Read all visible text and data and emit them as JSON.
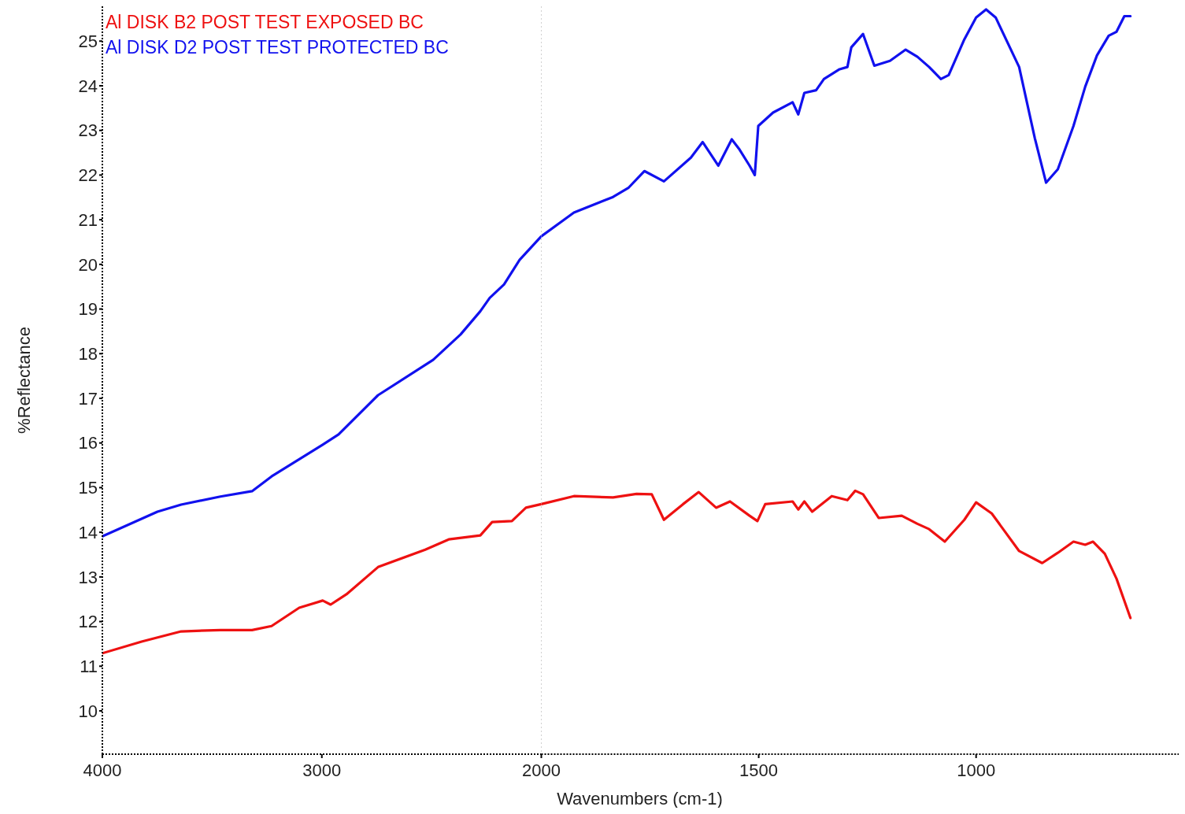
{
  "chart_data": [
    {
      "type": "line",
      "xlabel": "Wavenumbers (cm-1)",
      "ylabel": "%Reflectance",
      "xlim": [
        4000,
        2000
      ],
      "xticks": [
        4000,
        3000,
        2000
      ],
      "ylim": [
        9.03,
        25.78
      ],
      "yticks": [
        10,
        11,
        12,
        13,
        14,
        15,
        16,
        17,
        18,
        19,
        20,
        21,
        22,
        23,
        24,
        25
      ],
      "legend": "top left",
      "grid": false,
      "marker": "none",
      "line_style": "solid",
      "series": [
        {
          "name": "Al DISK B2 POST TEST EXPOSED BC",
          "color": "#ee1111",
          "x": [
            4000,
            3821,
            3641,
            3462,
            3318,
            3229,
            3103,
            2996,
            2960,
            2888,
            2744,
            2529,
            2422,
            2278,
            2224,
            2134,
            2070,
            2000
          ],
          "values": [
            11.29,
            11.55,
            11.78,
            11.81,
            11.81,
            11.9,
            12.31,
            12.47,
            12.38,
            12.61,
            13.22,
            13.61,
            13.84,
            13.93,
            14.23,
            14.25,
            14.55,
            14.63
          ]
        },
        {
          "name": "Al DISK D2 POST TEST PROTECTED BC",
          "color": "#1111ee",
          "x": [
            4000,
            3749,
            3641,
            3462,
            3318,
            3229,
            2996,
            2924,
            2744,
            2493,
            2368,
            2278,
            2235,
            2170,
            2099,
            2000
          ],
          "values": [
            13.91,
            14.46,
            14.62,
            14.8,
            14.92,
            15.25,
            15.96,
            16.19,
            17.07,
            17.86,
            18.43,
            18.95,
            19.25,
            19.55,
            20.1,
            20.63
          ]
        }
      ]
    },
    {
      "type": "line",
      "xlim": [
        2000,
        534
      ],
      "xticks": [
        1500,
        1000
      ],
      "ylim": [
        9.03,
        25.78
      ],
      "tick_labels": "x",
      "grid": false,
      "ref_lines": [
        {
          "axis": "x",
          "value": 2000,
          "label": null,
          "color": "#d0d0d0",
          "line_style": "dotted"
        }
      ],
      "marker": "none",
      "line_style": "solid",
      "series": [
        {
          "color": "#ee1111",
          "x": [
            2000,
            1925,
            1835,
            1781,
            1746,
            1718,
            1674,
            1638,
            1598,
            1566,
            1521,
            1503,
            1485,
            1422,
            1409,
            1395,
            1377,
            1332,
            1296,
            1278,
            1260,
            1224,
            1171,
            1135,
            1108,
            1072,
            1027,
            1000,
            964,
            901,
            848,
            812,
            776,
            749,
            731,
            704,
            677,
            645
          ],
          "values": [
            14.63,
            14.81,
            14.78,
            14.86,
            14.85,
            14.28,
            14.63,
            14.9,
            14.55,
            14.69,
            14.37,
            14.25,
            14.63,
            14.69,
            14.51,
            14.69,
            14.46,
            14.81,
            14.72,
            14.93,
            14.85,
            14.32,
            14.37,
            14.19,
            14.07,
            13.79,
            14.28,
            14.67,
            14.42,
            13.58,
            13.31,
            13.54,
            13.79,
            13.72,
            13.79,
            13.52,
            12.96,
            12.08
          ]
        },
        {
          "color": "#1111ee",
          "x": [
            2000,
            1925,
            1835,
            1799,
            1763,
            1718,
            1656,
            1629,
            1593,
            1562,
            1544,
            1521,
            1509,
            1501,
            1467,
            1422,
            1409,
            1395,
            1368,
            1350,
            1314,
            1296,
            1287,
            1260,
            1234,
            1198,
            1162,
            1135,
            1108,
            1081,
            1063,
            1027,
            1000,
            977,
            955,
            901,
            865,
            839,
            812,
            776,
            749,
            722,
            695,
            677,
            659,
            645
          ],
          "values": [
            20.63,
            21.16,
            21.51,
            21.72,
            22.09,
            21.86,
            22.39,
            22.74,
            22.21,
            22.8,
            22.57,
            22.21,
            22.0,
            23.1,
            23.4,
            23.63,
            23.36,
            23.84,
            23.9,
            24.15,
            24.37,
            24.42,
            24.86,
            25.16,
            24.45,
            24.56,
            24.81,
            24.65,
            24.42,
            24.15,
            24.24,
            25.04,
            25.53,
            25.71,
            25.53,
            24.42,
            22.83,
            21.83,
            22.13,
            23.1,
            23.98,
            24.68,
            25.12,
            25.21,
            25.56,
            25.56
          ]
        }
      ]
    }
  ]
}
